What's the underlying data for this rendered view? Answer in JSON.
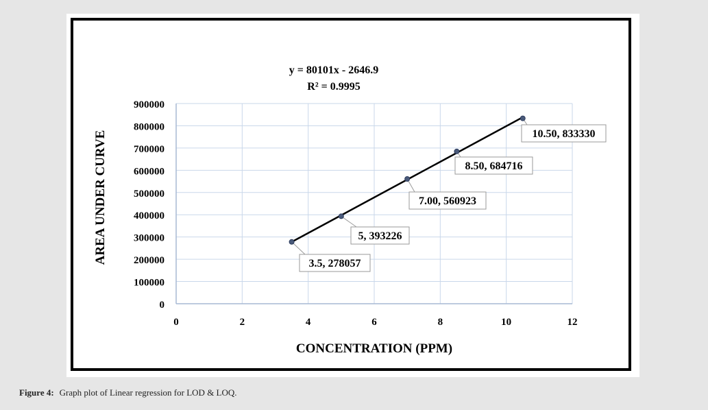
{
  "caption": {
    "label": "Figure 4:",
    "text": "Graph plot of Linear regression for LOD & LOQ."
  },
  "chart_data": {
    "type": "scatter",
    "equation": "y = 80101x - 2646.9",
    "r2": "R² = 0.9995",
    "xlabel": "CONCENTRATION (PPM)",
    "ylabel": "AREA UNDER CURVE",
    "xlim": [
      0,
      12
    ],
    "ylim": [
      0,
      900000
    ],
    "xticks": [
      0,
      2,
      4,
      6,
      8,
      10,
      12
    ],
    "yticks": [
      0,
      100000,
      200000,
      300000,
      400000,
      500000,
      600000,
      700000,
      800000,
      900000
    ],
    "grid": true,
    "points": [
      {
        "x": 3.5,
        "y": 278057,
        "label": "3.5, 278057"
      },
      {
        "x": 5,
        "y": 393226,
        "label": "5, 393226"
      },
      {
        "x": 7,
        "y": 560923,
        "label": "7.00, 560923"
      },
      {
        "x": 8.5,
        "y": 684716,
        "label": "8.50, 684716"
      },
      {
        "x": 10.5,
        "y": 833330,
        "label": "10.50, 833330"
      }
    ],
    "trendline": {
      "slope": 80101,
      "intercept": -2646.9,
      "x_range": [
        3.5,
        10.5
      ]
    },
    "colors": {
      "line": "#000000",
      "point": "#4a5a7a",
      "grid": "#c9d7ea",
      "axis": "#a7b9d4"
    }
  }
}
